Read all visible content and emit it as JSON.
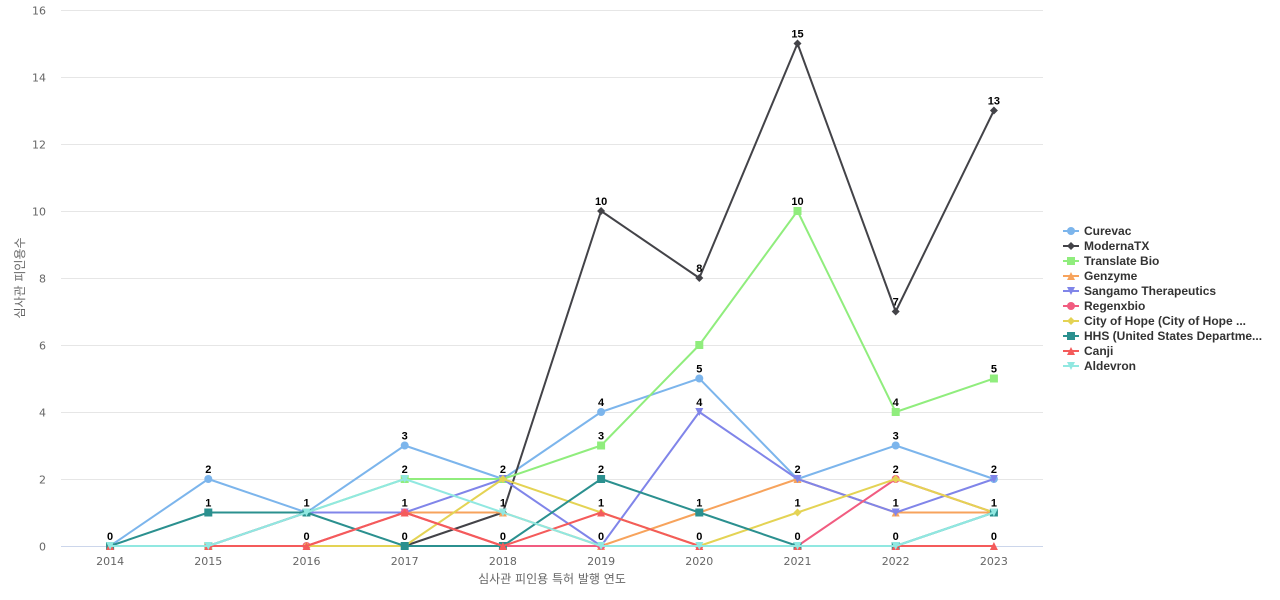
{
  "chart_data": {
    "type": "line",
    "title": "",
    "xlabel": "심사관 피인용 특허 발행 연도",
    "ylabel": "심사관 피인용수",
    "x": [
      "2014",
      "2015",
      "2016",
      "2017",
      "2018",
      "2019",
      "2020",
      "2021",
      "2022",
      "2023"
    ],
    "ylim": [
      0,
      16
    ],
    "yticks": [
      0,
      2,
      4,
      6,
      8,
      10,
      12,
      14,
      16
    ],
    "grid": true,
    "legend_position": "right",
    "series": [
      {
        "name": "Curevac",
        "color": "#7cb5ec",
        "marker": "circle",
        "values": [
          0,
          2,
          1,
          3,
          2,
          4,
          5,
          2,
          3,
          2
        ]
      },
      {
        "name": "ModernaTX",
        "color": "#434348",
        "marker": "diamond",
        "values": [
          0,
          0,
          0,
          0,
          1,
          10,
          8,
          15,
          7,
          13
        ]
      },
      {
        "name": "Translate Bio",
        "color": "#90ed7d",
        "marker": "square",
        "values": [
          0,
          0,
          1,
          2,
          2,
          3,
          6,
          10,
          4,
          5
        ]
      },
      {
        "name": "Genzyme",
        "color": "#f7a35c",
        "marker": "triangle",
        "values": [
          0,
          0,
          1,
          1,
          1,
          0,
          1,
          2,
          1,
          1
        ]
      },
      {
        "name": "Sangamo Therapeutics",
        "color": "#8085e9",
        "marker": "triangle-down",
        "values": [
          0,
          0,
          1,
          1,
          2,
          0,
          4,
          2,
          1,
          2
        ]
      },
      {
        "name": "Regenxbio",
        "color": "#f15c80",
        "marker": "circle",
        "values": [
          0,
          0,
          0,
          1,
          0,
          0,
          0,
          0,
          2,
          1
        ]
      },
      {
        "name": "City of Hope (City of Hope ...",
        "color": "#e4d354",
        "marker": "diamond",
        "values": [
          0,
          0,
          0,
          0,
          2,
          1,
          0,
          1,
          2,
          1
        ]
      },
      {
        "name": "HHS (United States Departme...",
        "color": "#2b908f",
        "marker": "square",
        "values": [
          0,
          1,
          1,
          0,
          0,
          2,
          1,
          0,
          0,
          1
        ]
      },
      {
        "name": "Canji",
        "color": "#f45b5b",
        "marker": "triangle",
        "values": [
          0,
          0,
          0,
          1,
          0,
          1,
          0,
          0,
          0,
          0
        ]
      },
      {
        "name": "Aldevron",
        "color": "#91e8e1",
        "marker": "triangle-down",
        "values": [
          0,
          0,
          1,
          2,
          1,
          0,
          0,
          0,
          0,
          1
        ]
      }
    ],
    "data_labels": [
      0,
      2,
      1,
      3,
      2,
      10,
      8,
      15,
      7,
      13,
      0,
      0,
      0,
      0,
      0,
      2,
      4,
      2,
      2,
      5,
      0,
      1,
      1,
      1,
      1,
      1,
      6,
      10,
      4,
      1,
      0,
      0,
      0,
      2,
      0,
      1,
      0,
      0,
      0,
      0,
      0,
      0,
      0,
      0,
      0,
      3,
      0,
      0,
      0,
      0,
      0,
      0,
      0,
      0,
      0,
      4,
      5,
      0,
      3,
      0
    ]
  }
}
